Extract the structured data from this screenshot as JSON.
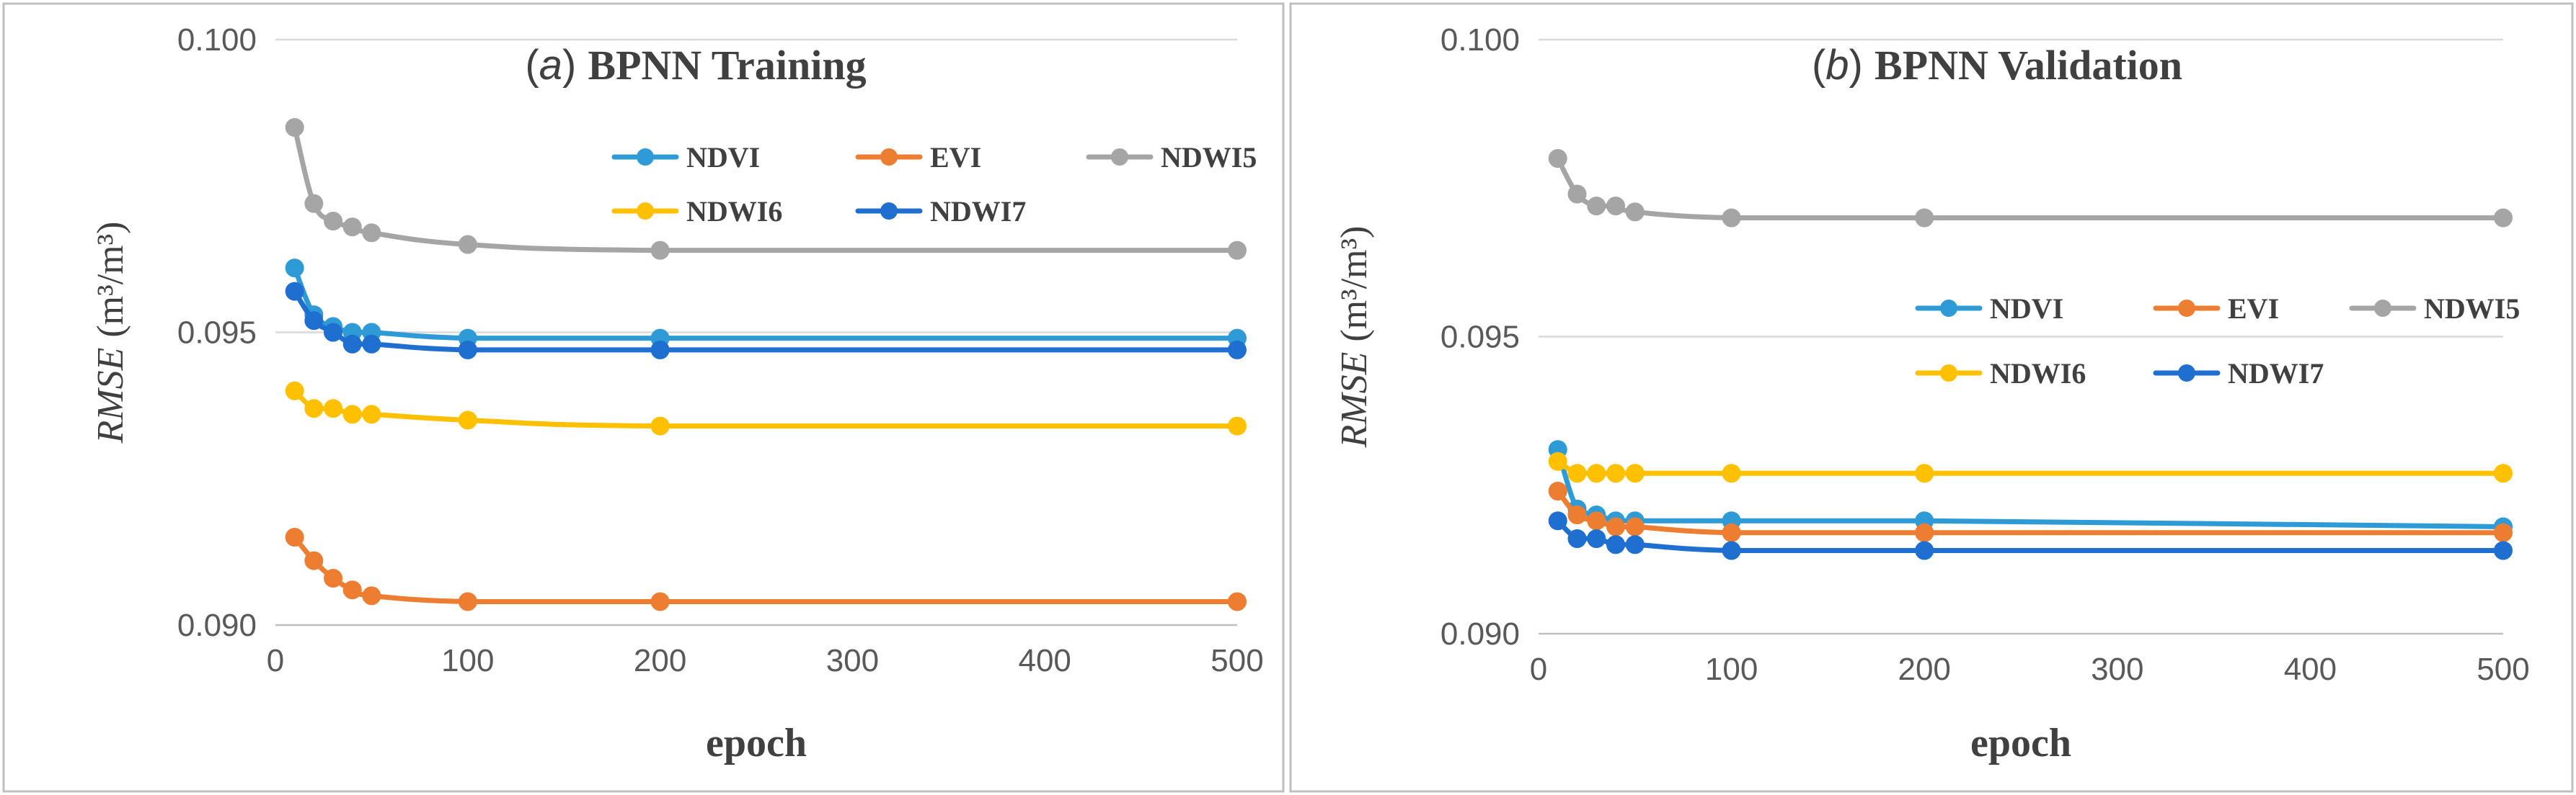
{
  "chart_data": [
    {
      "type": "line",
      "panel_letter": "a",
      "title": "BPNN Training",
      "xlabel": "epoch",
      "ylabel_var": "RMSE",
      "ylabel_unit": "(m3/m3)",
      "x": [
        10,
        20,
        30,
        40,
        50,
        100,
        200,
        500
      ],
      "xlim": [
        0,
        500
      ],
      "ylim": [
        0.09,
        0.1
      ],
      "xticks": [
        "0",
        "100",
        "200",
        "300",
        "400",
        "500"
      ],
      "yticks": [
        "0.090",
        "0.095",
        "0.100"
      ],
      "gridlines": true,
      "legend_position": "upper-right",
      "series": [
        {
          "name": "NDVI",
          "color": "#2E9BD6",
          "values": [
            0.0961,
            0.0953,
            0.0951,
            0.095,
            0.095,
            0.0949,
            0.0949,
            0.0949
          ]
        },
        {
          "name": "EVI",
          "color": "#ED7D31",
          "values": [
            0.0915,
            0.0911,
            0.0908,
            0.0906,
            0.0905,
            0.0904,
            0.0904,
            0.0904
          ]
        },
        {
          "name": "NDWI5",
          "color": "#A5A5A5",
          "values": [
            0.0985,
            0.0972,
            0.0969,
            0.0968,
            0.0967,
            0.0965,
            0.0964,
            0.0964
          ]
        },
        {
          "name": "NDWI6",
          "color": "#FFC000",
          "values": [
            0.094,
            0.0937,
            0.0937,
            0.0936,
            0.0936,
            0.0935,
            0.0934,
            0.0934
          ]
        },
        {
          "name": "NDWI7",
          "color": "#1F6FD0",
          "values": [
            0.0957,
            0.0952,
            0.095,
            0.0948,
            0.0948,
            0.0947,
            0.0947,
            0.0947
          ]
        }
      ]
    },
    {
      "type": "line",
      "panel_letter": "b",
      "title": "BPNN Validation",
      "xlabel": "epoch",
      "ylabel_var": "RMSE",
      "ylabel_unit": "(m3/m3)",
      "x": [
        10,
        20,
        30,
        40,
        50,
        100,
        200,
        500
      ],
      "xlim": [
        0,
        500
      ],
      "ylim": [
        0.09,
        0.1
      ],
      "xticks": [
        "0",
        "100",
        "200",
        "300",
        "400",
        "500"
      ],
      "yticks": [
        "0.090",
        "0.095",
        "0.100"
      ],
      "gridlines": true,
      "legend_position": "center-right",
      "series": [
        {
          "name": "NDVI",
          "color": "#2E9BD6",
          "values": [
            0.0931,
            0.0921,
            0.092,
            0.0919,
            0.0919,
            0.0919,
            0.0919,
            0.0918
          ]
        },
        {
          "name": "EVI",
          "color": "#ED7D31",
          "values": [
            0.0924,
            0.092,
            0.0919,
            0.0918,
            0.0918,
            0.0917,
            0.0917,
            0.0917
          ]
        },
        {
          "name": "NDWI5",
          "color": "#A5A5A5",
          "values": [
            0.098,
            0.0974,
            0.0972,
            0.0972,
            0.0971,
            0.097,
            0.097,
            0.097
          ]
        },
        {
          "name": "NDWI6",
          "color": "#FFC000",
          "values": [
            0.0929,
            0.0927,
            0.0927,
            0.0927,
            0.0927,
            0.0927,
            0.0927,
            0.0927
          ]
        },
        {
          "name": "NDWI7",
          "color": "#1F6FD0",
          "values": [
            0.0919,
            0.0916,
            0.0916,
            0.0915,
            0.0915,
            0.0914,
            0.0914,
            0.0914
          ]
        }
      ]
    }
  ]
}
